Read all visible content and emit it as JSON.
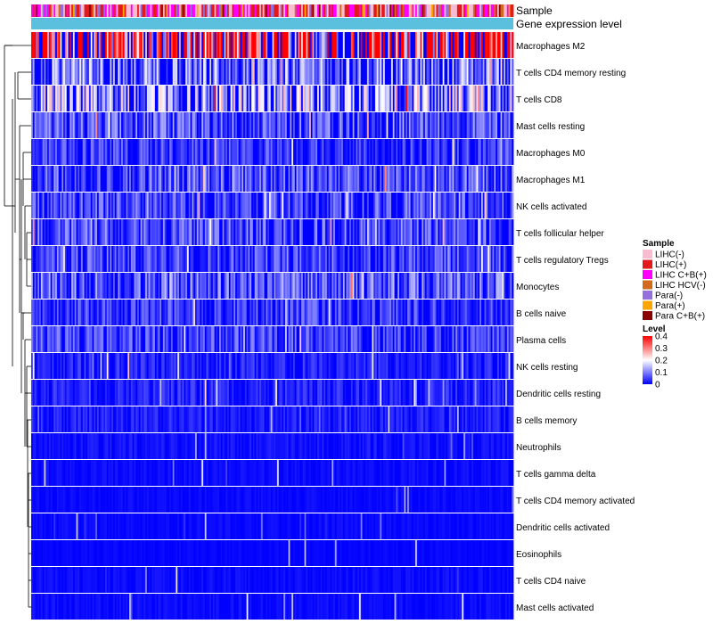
{
  "chart_data": {
    "type": "heatmap",
    "annotation_tracks": [
      "Sample",
      "Gene expression level"
    ],
    "rows": [
      {
        "label": "Macrophages M2",
        "mean": 0.34
      },
      {
        "label": "T cells CD4 memory resting",
        "mean": 0.1
      },
      {
        "label": "T cells CD8",
        "mean": 0.13
      },
      {
        "label": "Mast cells resting",
        "mean": 0.07
      },
      {
        "label": "Macrophages M0",
        "mean": 0.05
      },
      {
        "label": "Macrophages M1",
        "mean": 0.07
      },
      {
        "label": "NK cells activated",
        "mean": 0.06
      },
      {
        "label": "T cells follicular helper",
        "mean": 0.065
      },
      {
        "label": "T cells regulatory  Tregs",
        "mean": 0.06
      },
      {
        "label": "Monocytes",
        "mean": 0.075
      },
      {
        "label": "B cells naive",
        "mean": 0.05
      },
      {
        "label": "Plasma cells",
        "mean": 0.055
      },
      {
        "label": "NK cells resting",
        "mean": 0.03
      },
      {
        "label": "Dendritic cells resting",
        "mean": 0.03
      },
      {
        "label": "B cells memory",
        "mean": 0.025
      },
      {
        "label": "Neutrophils",
        "mean": 0.015
      },
      {
        "label": "T cells gamma delta",
        "mean": 0.01
      },
      {
        "label": "T cells CD4 memory activated",
        "mean": 0.008
      },
      {
        "label": "Dendritic cells activated",
        "mean": 0.008
      },
      {
        "label": "Eosinophils",
        "mean": 0.005
      },
      {
        "label": "T cells CD4 naive",
        "mean": 0.01
      },
      {
        "label": "Mast cells activated",
        "mean": 0.01
      }
    ],
    "legend": {
      "sample_title": "Sample",
      "sample_entries": [
        {
          "label": "LIHC(-)",
          "color": "#f8bbd0"
        },
        {
          "label": "LIHC(+)",
          "color": "#e31a1c"
        },
        {
          "label": "LIHC C+B(+)",
          "color": "#ff00ff"
        },
        {
          "label": "LIHC HCV(-)",
          "color": "#d2691e"
        },
        {
          "label": "Para(-)",
          "color": "#9370db"
        },
        {
          "label": "Para(+)",
          "color": "#ffa500"
        },
        {
          "label": "Para C+B(+)",
          "color": "#8b0000"
        }
      ],
      "level_title": "Level",
      "level_ticks": [
        "0.4",
        "0.3",
        "0.2",
        "0.1",
        "0"
      ],
      "level_range": [
        0,
        0.4
      ],
      "level_colors": [
        "#0000ff",
        "#ffffff",
        "#ff0000"
      ]
    },
    "gene_expression_color": "#5bc0de"
  }
}
